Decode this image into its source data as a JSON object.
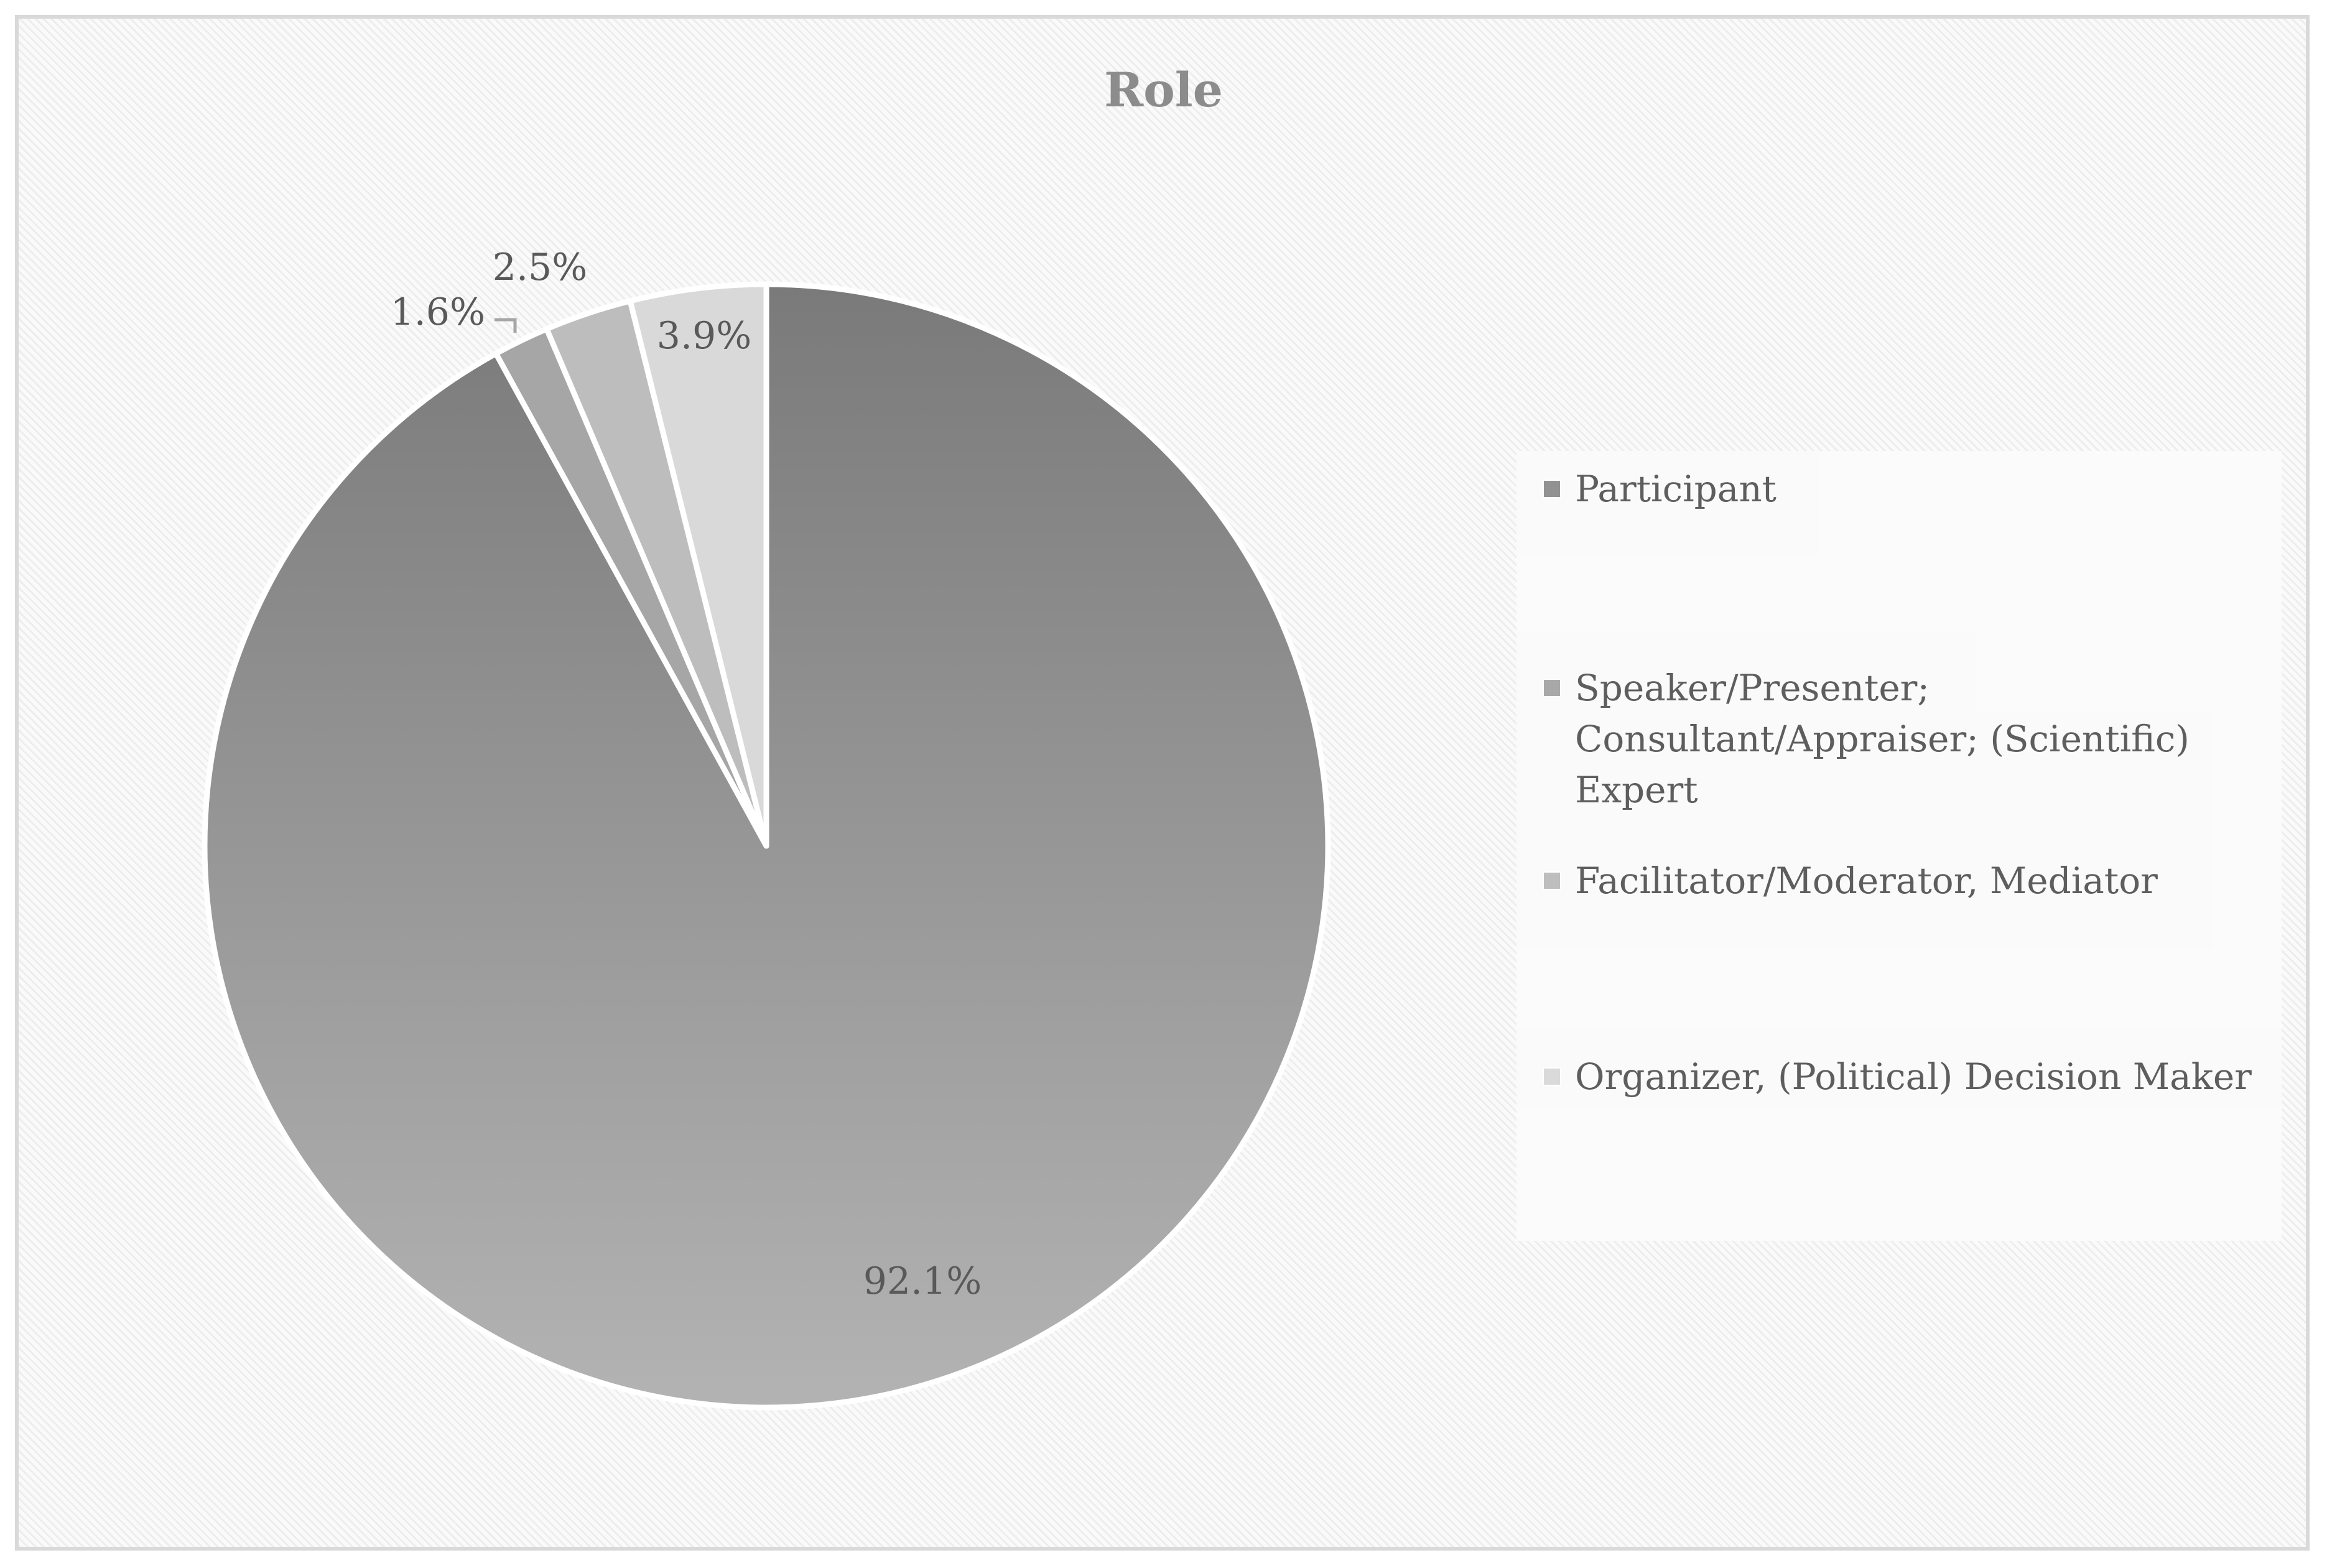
{
  "chart_data": {
    "type": "pie",
    "title": "Role",
    "categories": [
      "Participant",
      "Speaker/Presenter; Consultant/Appraiser; (Scientific) Expert",
      "Facilitator/Moderator, Mediator",
      "Organizer, (Political) Decision Maker"
    ],
    "values": [
      92.1,
      1.6,
      2.5,
      3.9
    ],
    "labels": [
      "92.1%",
      "1.6%",
      "2.5%",
      "3.9%"
    ],
    "colors": [
      "#8f8f8f",
      "#a6a6a6",
      "#bdbdbd",
      "#d9d9d9"
    ],
    "legend_position": "right",
    "start_angle_deg": 0,
    "direction": "clockwise"
  }
}
